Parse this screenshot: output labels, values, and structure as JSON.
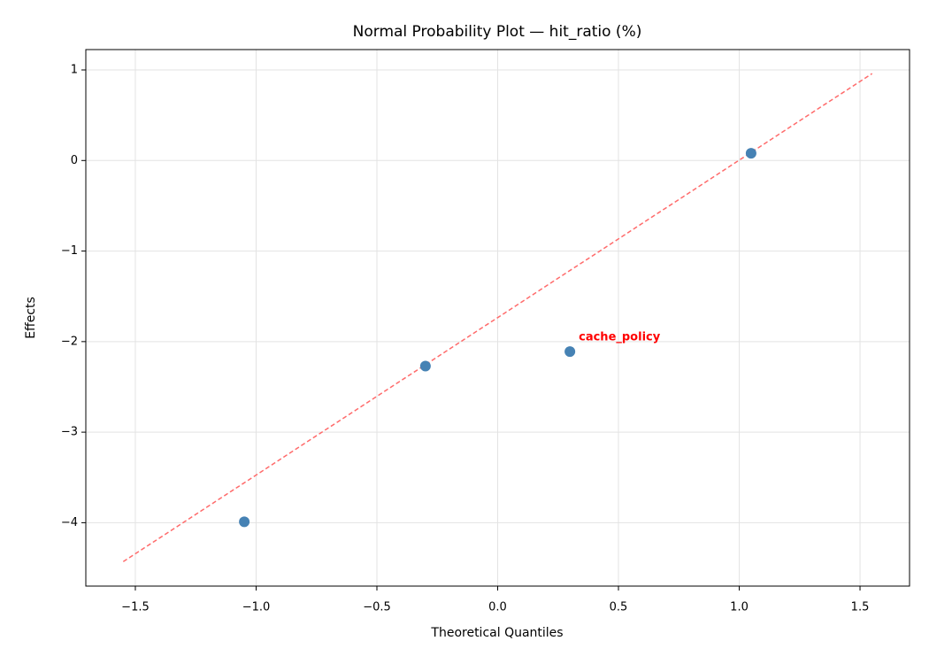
{
  "chart_data": {
    "type": "scatter",
    "title": "Normal Probability Plot — hit_ratio (%)",
    "x_label": "Theoretical Quantiles",
    "y_label": "Effects",
    "x": [
      -1.049,
      -0.299,
      0.299,
      1.049
    ],
    "values": [
      -3.99,
      -2.27,
      -2.11,
      0.08
    ],
    "color": "#4682b4",
    "reference_line": {
      "x": [
        -1.55,
        1.55
      ],
      "y": [
        -4.43,
        0.96
      ],
      "color": "#ff6b6b",
      "dashed": true
    },
    "annotations": [
      {
        "text": "cache_policy",
        "x": 0.299,
        "y": -2.11,
        "color": "#ff0000"
      }
    ],
    "xlim": [
      -1.705,
      1.705
    ],
    "ylim": [
      -4.7,
      1.225
    ],
    "xticks": [
      {
        "value": -1.5,
        "label": "−1.5"
      },
      {
        "value": -1.0,
        "label": "−1.0"
      },
      {
        "value": -0.5,
        "label": "−0.5"
      },
      {
        "value": 0,
        "label": "0.0"
      },
      0.5,
      {
        "value": 1.0,
        "label": "1.0"
      },
      1.5
    ],
    "yticks": [
      {
        "value": -4,
        "label": "−4"
      },
      {
        "value": -3,
        "label": "−3"
      },
      {
        "value": -2,
        "label": "−2"
      },
      {
        "value": -1,
        "label": "−1"
      },
      0,
      1
    ],
    "grid": true
  }
}
